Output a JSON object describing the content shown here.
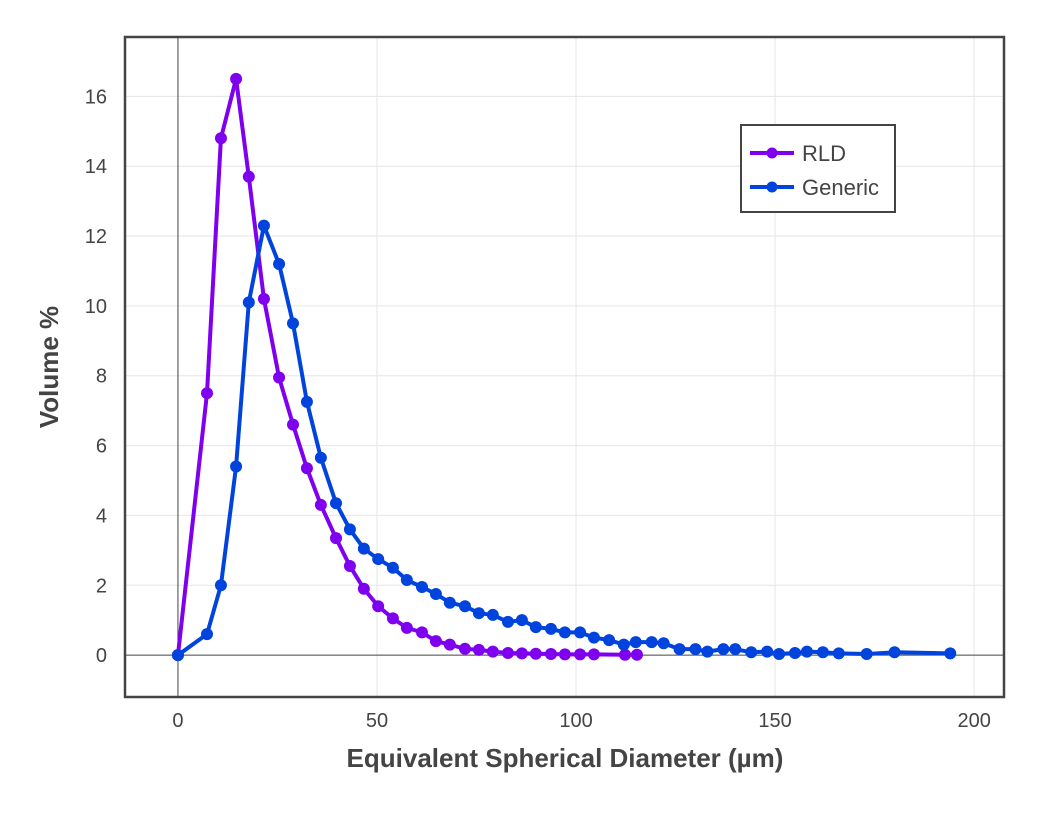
{
  "chart_data": {
    "type": "line",
    "title": "",
    "xlabel": "Equivalent Spherical Diameter (µm)",
    "ylabel": "Volume %",
    "xlim": [
      -13.3,
      207.5
    ],
    "ylim": [
      -1.2,
      17.7
    ],
    "xticks": [
      0,
      50,
      100,
      150,
      200
    ],
    "yticks": [
      0,
      2,
      4,
      6,
      8,
      10,
      12,
      14,
      16
    ],
    "grid": true,
    "legend": "top-right",
    "series": [
      {
        "name": "RLD",
        "color": "#7f00ee",
        "x": [
          0,
          7.3,
          10.8,
          14.6,
          17.8,
          21.6,
          25.4,
          28.9,
          32.4,
          35.9,
          39.7,
          43.2,
          46.7,
          50.3,
          54.0,
          57.5,
          61.3,
          64.8,
          68.3,
          72.1,
          75.6,
          79.1,
          82.9,
          86.4,
          89.9,
          93.7,
          97.2,
          101.0,
          104.5,
          112.3,
          115.3
        ],
        "y": [
          0,
          7.5,
          14.8,
          16.5,
          13.7,
          10.2,
          7.95,
          6.6,
          5.35,
          4.3,
          3.35,
          2.55,
          1.9,
          1.4,
          1.05,
          0.78,
          0.65,
          0.4,
          0.3,
          0.18,
          0.15,
          0.1,
          0.06,
          0.05,
          0.04,
          0.03,
          0.02,
          0.02,
          0.02,
          0.01,
          0.01
        ]
      },
      {
        "name": "Generic",
        "color": "#0044dd",
        "x": [
          0,
          7.3,
          10.8,
          14.6,
          17.8,
          21.6,
          25.4,
          28.9,
          32.4,
          35.9,
          39.7,
          43.2,
          46.7,
          50.3,
          54.0,
          57.5,
          61.3,
          64.8,
          68.3,
          72.1,
          75.6,
          79.1,
          82.9,
          86.4,
          89.9,
          93.7,
          97.2,
          101.0,
          104.5,
          108.3,
          112,
          115,
          119,
          122,
          126,
          130,
          133,
          137,
          140,
          144,
          148,
          151,
          155,
          158,
          162,
          166,
          173,
          180,
          194
        ],
        "y": [
          0,
          0.6,
          2.0,
          5.4,
          10.1,
          12.3,
          11.2,
          9.5,
          7.25,
          5.65,
          4.35,
          3.6,
          3.05,
          2.75,
          2.5,
          2.15,
          1.95,
          1.75,
          1.5,
          1.4,
          1.2,
          1.15,
          0.95,
          1.0,
          0.8,
          0.75,
          0.65,
          0.65,
          0.5,
          0.43,
          0.3,
          0.37,
          0.37,
          0.34,
          0.17,
          0.17,
          0.1,
          0.17,
          0.17,
          0.08,
          0.1,
          0.03,
          0.06,
          0.1,
          0.08,
          0.05,
          0.03,
          0.08,
          0.05
        ]
      }
    ]
  }
}
